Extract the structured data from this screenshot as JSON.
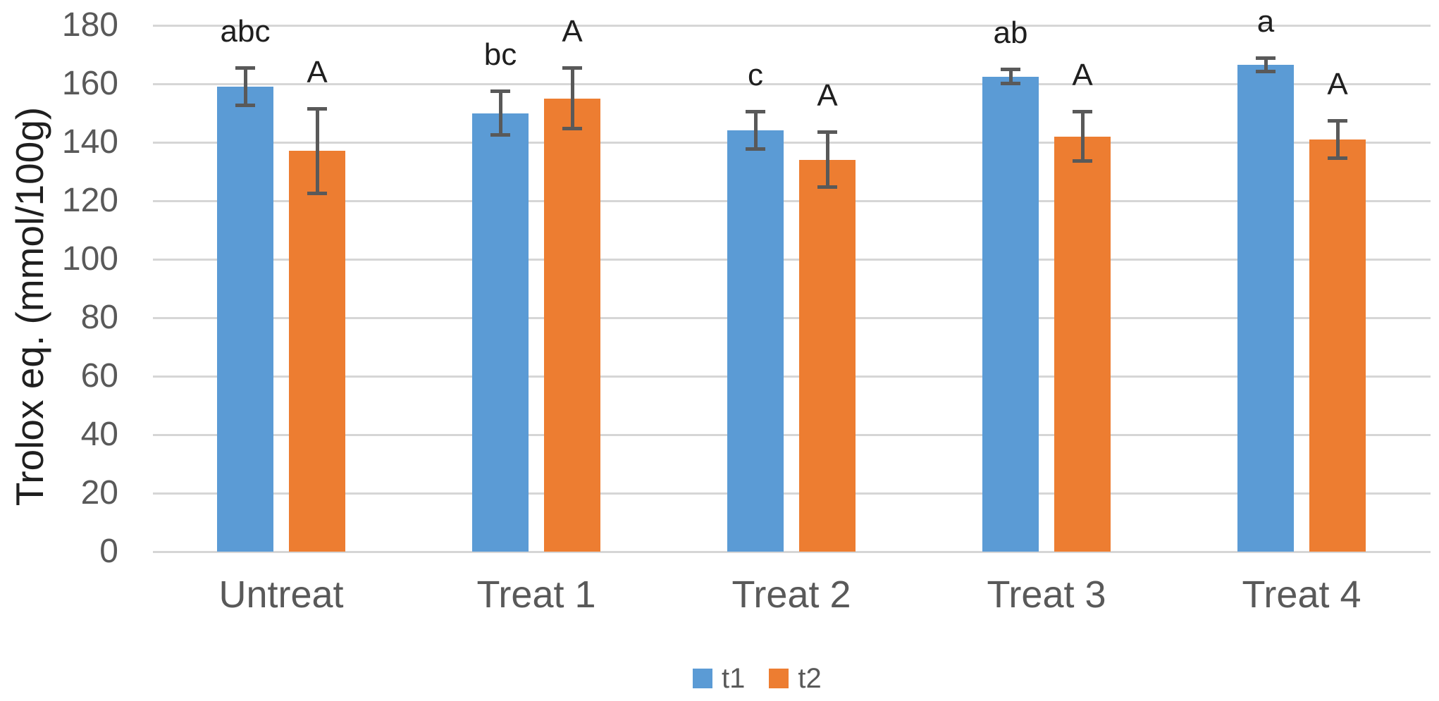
{
  "chart_data": {
    "type": "bar",
    "title": "",
    "xlabel": "",
    "ylabel": "Trolox eq. (mmol/100g)",
    "categories": [
      "Untreat",
      "Treat 1",
      "Treat 2",
      "Treat 3",
      "Treat 4"
    ],
    "yticks": [
      0,
      20,
      40,
      60,
      80,
      100,
      120,
      140,
      160,
      180
    ],
    "ylim": [
      0,
      180
    ],
    "ytick_step": 20,
    "grid": true,
    "legend_position": "bottom-center",
    "series": [
      {
        "name": "t1",
        "color": "#5B9BD5",
        "values": [
          159,
          150,
          144,
          162.5,
          166.5
        ],
        "error": [
          7,
          8,
          7,
          3,
          3
        ],
        "sig_labels": [
          "abc",
          "bc",
          "c",
          "ab",
          "a"
        ]
      },
      {
        "name": "t2",
        "color": "#ED7D31",
        "values": [
          137,
          155,
          134,
          142,
          141
        ],
        "error": [
          15,
          11,
          10,
          9,
          7
        ],
        "sig_labels": [
          "A",
          "A",
          "A",
          "A",
          "A"
        ]
      }
    ],
    "colors": {
      "error_bar": "#595959",
      "gridline": "#D6D6D6",
      "axis_text": "#595959",
      "annotation_text": "#1f1f1f",
      "background": "#ffffff"
    }
  }
}
